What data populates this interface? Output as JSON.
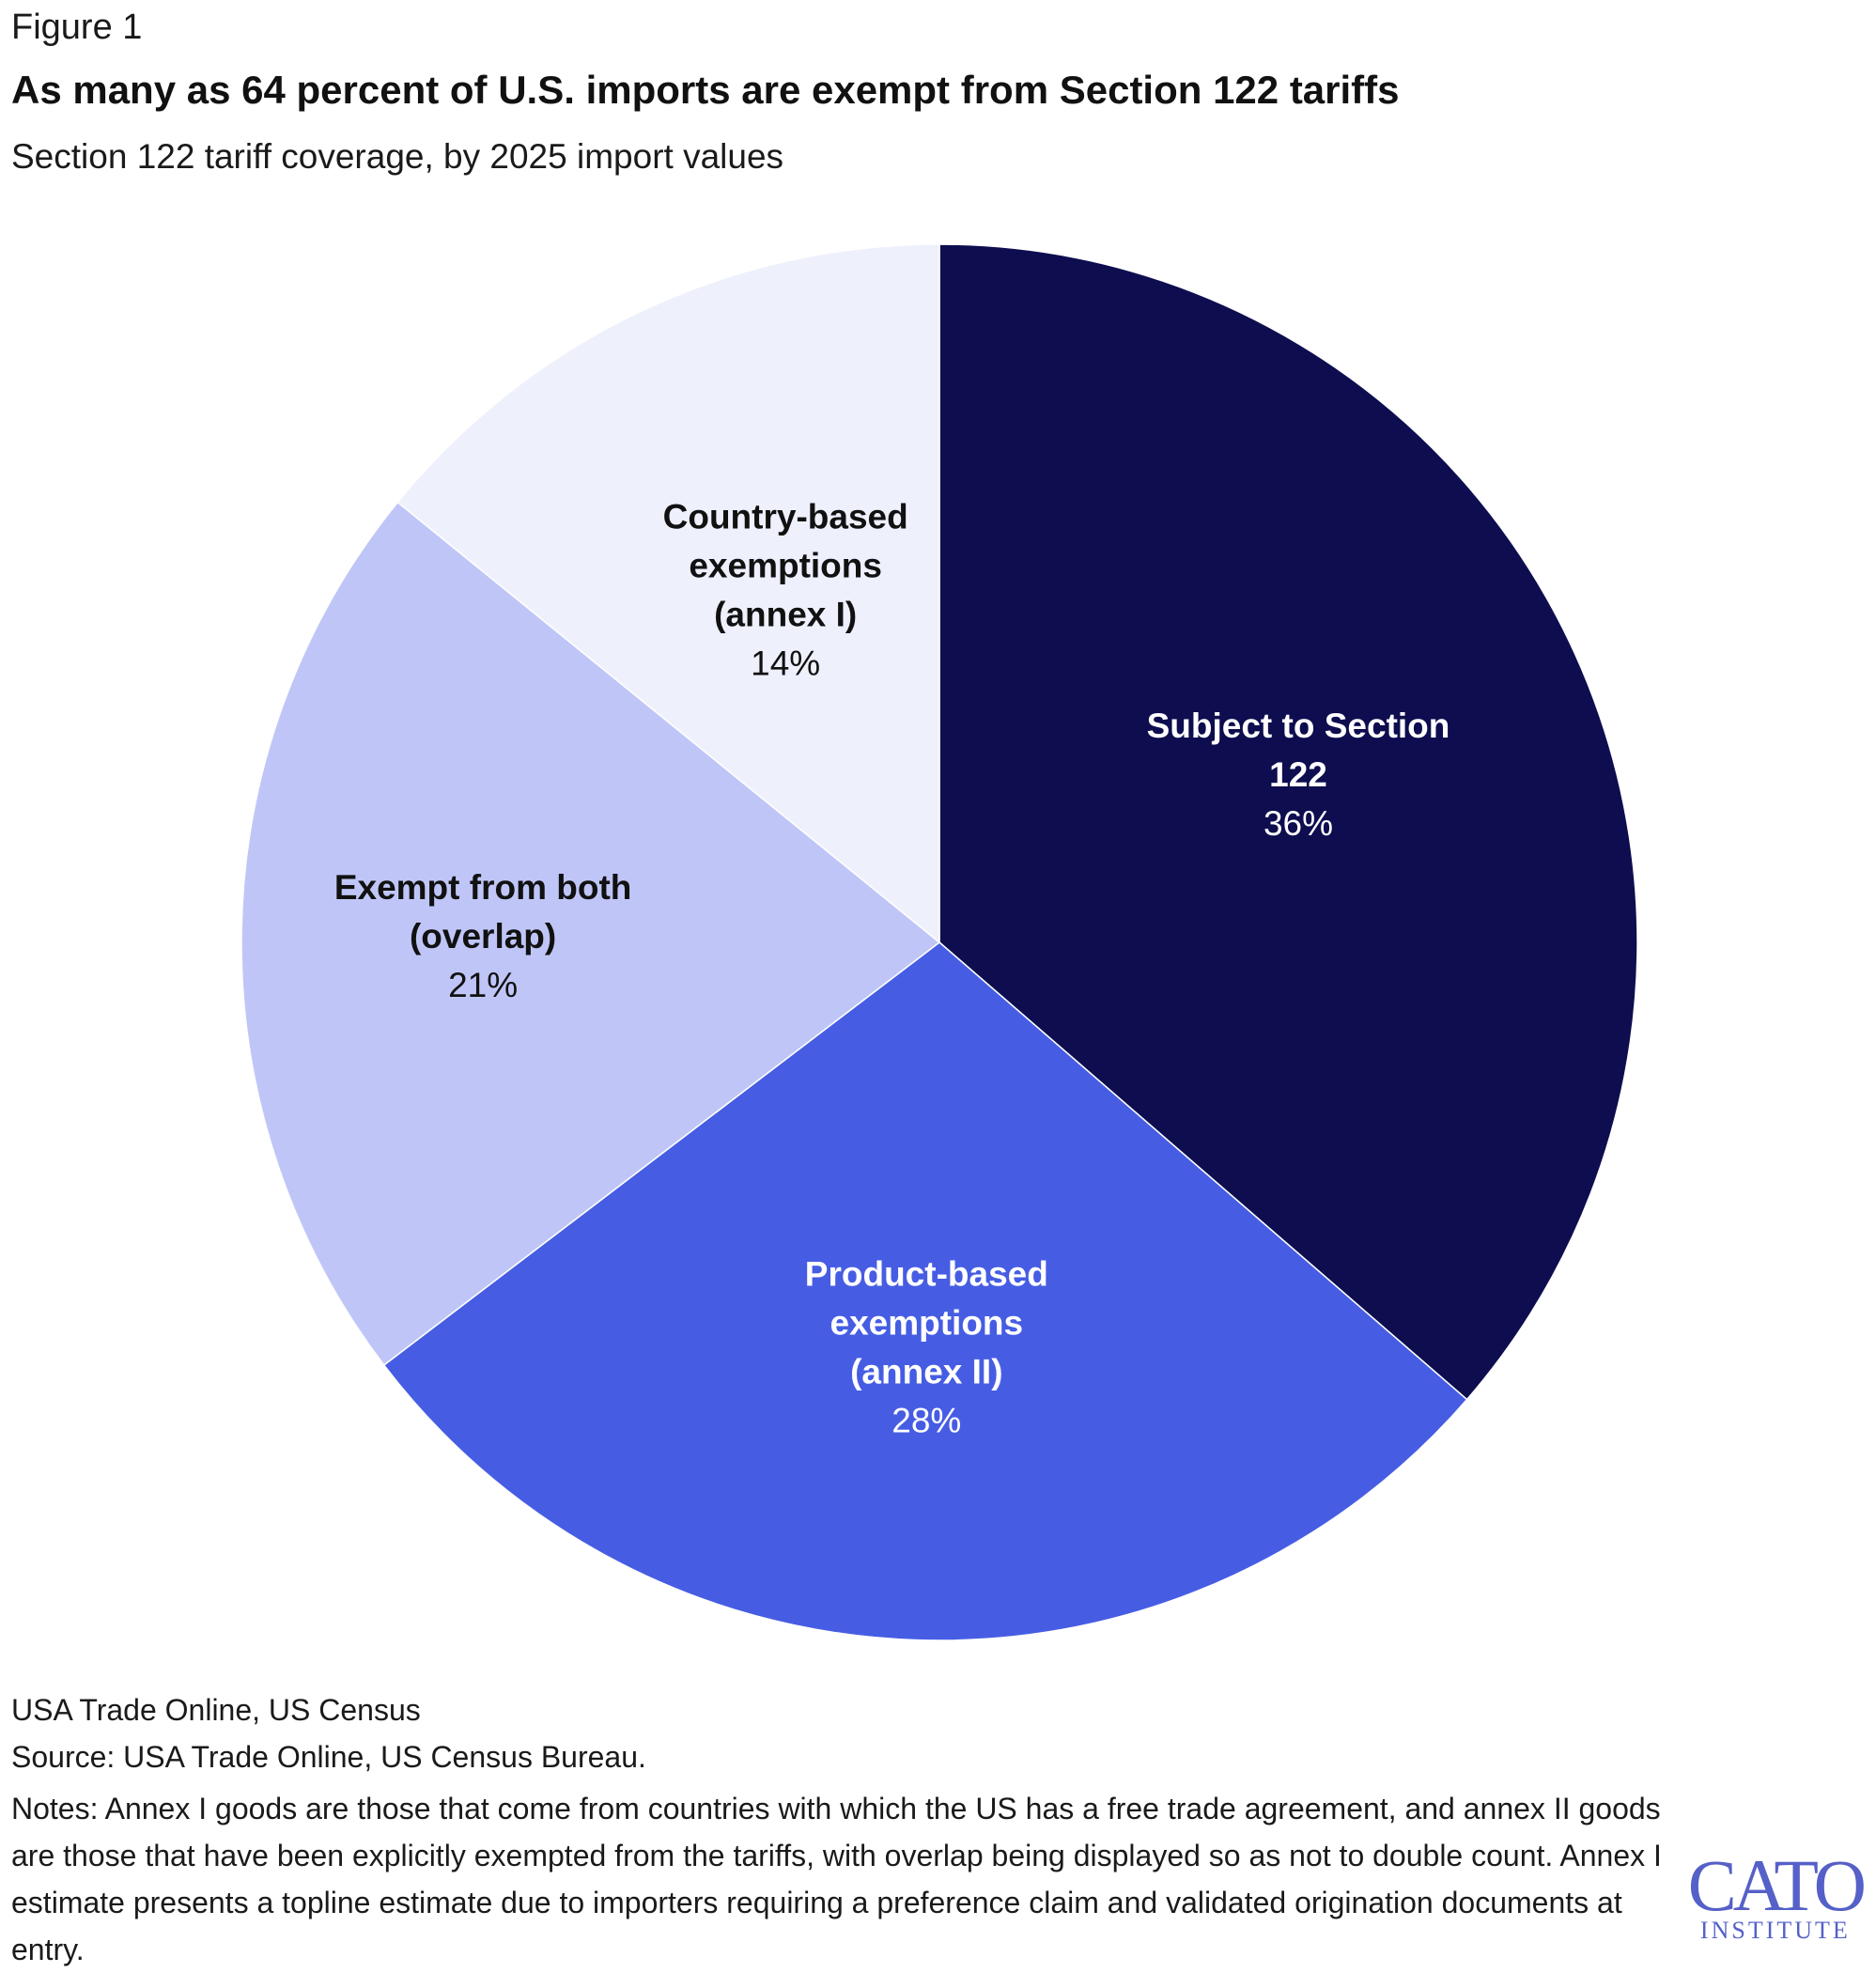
{
  "figure_label": "Figure 1",
  "title": "As many as 64 percent of U.S. imports are exempt from Section 122 tariffs",
  "subtitle": "Section 122 tariff coverage, by 2025 import values",
  "chart_data": {
    "type": "pie",
    "title": "As many as 64 percent of U.S. imports are exempt from Section 122 tariffs",
    "subtitle": "Section 122 tariff coverage, by 2025 import values",
    "unit": "%",
    "start": "12 o'clock",
    "direction": "clockwise",
    "slices": [
      {
        "name_lines": [
          "Subject to Section",
          "122"
        ],
        "value": 36,
        "label": "36%",
        "color": "#0d0d4f",
        "label_color": "#ffffff"
      },
      {
        "name_lines": [
          "Product-based",
          "exemptions",
          "(annex II)"
        ],
        "value": 28,
        "label": "28%",
        "color": "#465de3",
        "label_color": "#ffffff"
      },
      {
        "name_lines": [
          "Exempt from both",
          "(overlap)"
        ],
        "value": 21,
        "label": "21%",
        "color": "#bfc6f7",
        "label_color": "#111111"
      },
      {
        "name_lines": [
          "Country-based",
          "exemptions",
          "(annex I)"
        ],
        "value": 14,
        "label": "14%",
        "color": "#eef0fc",
        "label_color": "#111111"
      }
    ]
  },
  "footer": {
    "source_short": "USA Trade Online, US Census",
    "source": "Source: USA Trade Online, US Census Bureau.",
    "notes": "Notes: Annex I goods are those that come from countries with which the US has a free trade agreement, and annex II goods are those that have been explicitly exempted from the tariffs, with overlap being displayed so as not to double count. Annex I estimate presents a topline estimate due to importers requiring a preference claim and validated origination documents at entry."
  },
  "logo": {
    "main": "CATO",
    "sub": "INSTITUTE"
  }
}
